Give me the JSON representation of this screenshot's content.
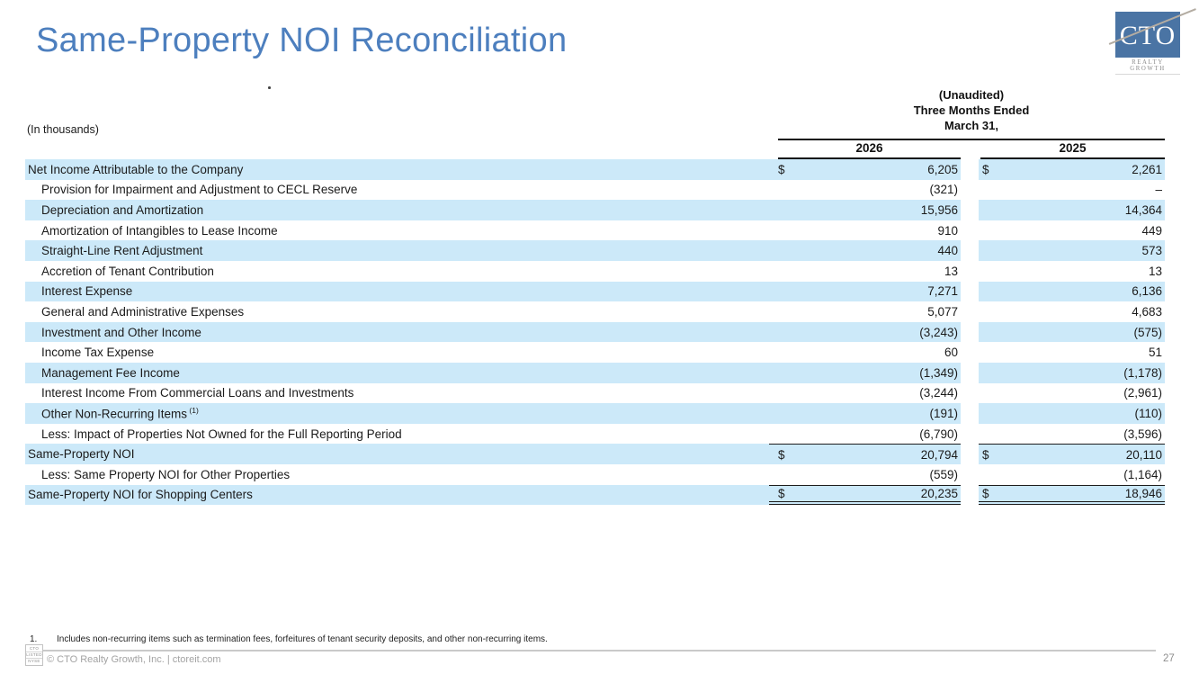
{
  "slide": {
    "title": "Same-Property NOI Reconciliation",
    "page_number": "27"
  },
  "logo": {
    "text": "CTO",
    "subtext": "REALTY GROWTH"
  },
  "table": {
    "units_label": "(In thousands)",
    "currency": "$",
    "header": {
      "unaudited": "(Unaudited)",
      "period": "Three Months Ended",
      "date": "March 31,",
      "years": [
        "2026",
        "2025"
      ]
    },
    "rows": [
      {
        "label": "Net Income Attributable to the Company",
        "indent": false,
        "shaded": true,
        "dollar": true,
        "v2026": "6,205",
        "v2025": "2,261"
      },
      {
        "label": "Provision for Impairment and Adjustment to CECL Reserve",
        "indent": true,
        "shaded": false,
        "dollar": false,
        "v2026": "(321)",
        "v2025": "–"
      },
      {
        "label": "Depreciation and Amortization",
        "indent": true,
        "shaded": true,
        "dollar": false,
        "v2026": "15,956",
        "v2025": "14,364"
      },
      {
        "label": "Amortization of Intangibles to Lease Income",
        "indent": true,
        "shaded": false,
        "dollar": false,
        "v2026": "910",
        "v2025": "449"
      },
      {
        "label": "Straight-Line Rent Adjustment",
        "indent": true,
        "shaded": true,
        "dollar": false,
        "v2026": "440",
        "v2025": "573"
      },
      {
        "label": "Accretion of Tenant Contribution",
        "indent": true,
        "shaded": false,
        "dollar": false,
        "v2026": "13",
        "v2025": "13"
      },
      {
        "label": "Interest Expense",
        "indent": true,
        "shaded": true,
        "dollar": false,
        "v2026": "7,271",
        "v2025": "6,136"
      },
      {
        "label": "General and Administrative Expenses",
        "indent": true,
        "shaded": false,
        "dollar": false,
        "v2026": "5,077",
        "v2025": "4,683"
      },
      {
        "label": "Investment and Other Income",
        "indent": true,
        "shaded": true,
        "dollar": false,
        "v2026": "(3,243)",
        "v2025": "(575)"
      },
      {
        "label": "Income Tax Expense",
        "indent": true,
        "shaded": false,
        "dollar": false,
        "v2026": "60",
        "v2025": "51"
      },
      {
        "label": "Management Fee Income",
        "indent": true,
        "shaded": true,
        "dollar": false,
        "v2026": "(1,349)",
        "v2025": "(1,178)"
      },
      {
        "label": "Interest Income From Commercial Loans and Investments",
        "indent": true,
        "shaded": false,
        "dollar": false,
        "v2026": "(3,244)",
        "v2025": "(2,961)"
      },
      {
        "label": "Other Non-Recurring Items",
        "sup": "(1)",
        "indent": true,
        "shaded": true,
        "dollar": false,
        "v2026": "(191)",
        "v2025": "(110)"
      },
      {
        "label": "Less: Impact of Properties Not Owned for the Full Reporting Period",
        "indent": true,
        "shaded": false,
        "dollar": false,
        "v2026": "(6,790)",
        "v2025": "(3,596)"
      },
      {
        "label": "Same-Property NOI",
        "indent": false,
        "shaded": true,
        "dollar": true,
        "rule_top": true,
        "v2026": "20,794",
        "v2025": "20,110"
      },
      {
        "label": "Less: Same Property NOI for Other Properties",
        "indent": true,
        "shaded": false,
        "dollar": false,
        "v2026": "(559)",
        "v2025": "(1,164)"
      },
      {
        "label": "Same-Property NOI for Shopping Centers",
        "indent": false,
        "shaded": true,
        "dollar": true,
        "rule_top": true,
        "rule_double_bottom": true,
        "v2026": "20,235",
        "v2025": "18,946"
      }
    ]
  },
  "footnote": {
    "number": "1.",
    "text": "Includes non-recurring items such as termination fees, forfeitures of tenant security deposits, and other non-recurring items."
  },
  "footer": {
    "copyright": "© CTO Realty Growth, Inc. | ctoreit.com",
    "nyse_mark": [
      "CTO",
      "LISTED",
      "NYSE"
    ]
  },
  "colors": {
    "title_blue": "#4d7fbe",
    "row_highlight_blue": "#cce9f9",
    "logo_blue": "#4a74a4",
    "rule_black": "#1d1d1d",
    "footer_gray": "#a3a3a3"
  }
}
